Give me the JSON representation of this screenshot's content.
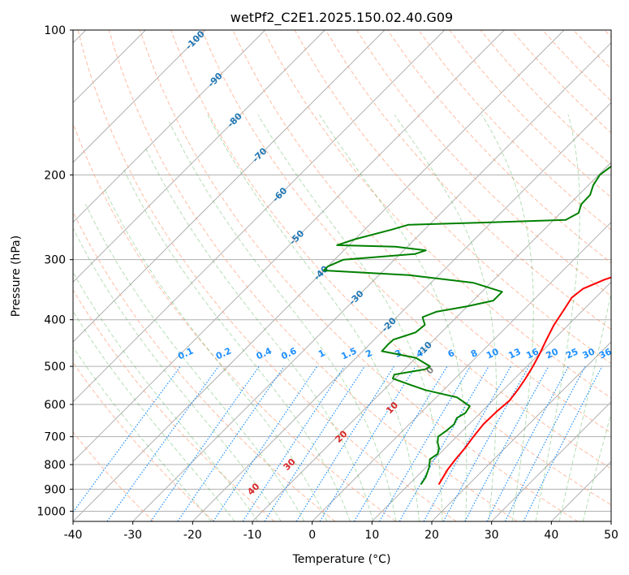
{
  "chart_data": {
    "type": "line",
    "title": "wetPf2_C2E1.2025.150.02.40.G09",
    "xlabel": "Temperature (°C)",
    "ylabel": "Pressure (hPa)",
    "xlim": [
      -40,
      50
    ],
    "ylim": [
      1050,
      100
    ],
    "y_scale": "log",
    "x_ticks": [
      -40,
      -30,
      -20,
      -10,
      0,
      10,
      20,
      30,
      40,
      50
    ],
    "y_ticks": [
      100,
      200,
      300,
      400,
      500,
      600,
      700,
      800,
      900,
      1000
    ],
    "grid": true,
    "skew": 45,
    "series": [
      {
        "role": "temperature",
        "color": "#ff0000",
        "points": [
          [
            15.0,
            880
          ],
          [
            14.0,
            820
          ],
          [
            13.6,
            780
          ],
          [
            13.3,
            740
          ],
          [
            12.8,
            700
          ],
          [
            12.4,
            660
          ],
          [
            12.5,
            620
          ],
          [
            12.8,
            590
          ],
          [
            12.4,
            560
          ],
          [
            11.8,
            530
          ],
          [
            11.0,
            500
          ],
          [
            10.0,
            470
          ],
          [
            8.8,
            440
          ],
          [
            7.6,
            410
          ],
          [
            6.7,
            380
          ],
          [
            6.0,
            360
          ],
          [
            6.4,
            345
          ],
          [
            8.5,
            330
          ],
          [
            11.0,
            318
          ],
          [
            12.8,
            305
          ],
          [
            13.6,
            290
          ],
          [
            15.0,
            278
          ],
          [
            16.1,
            268
          ],
          [
            15.5,
            258
          ],
          [
            13.8,
            248
          ],
          [
            12.0,
            238
          ],
          [
            11.0,
            227
          ],
          [
            10.6,
            215
          ],
          [
            10.5,
            200
          ],
          [
            9.9,
            190
          ],
          [
            8.3,
            180
          ],
          [
            6.3,
            168
          ],
          [
            5.3,
            155
          ],
          [
            5.5,
            145
          ],
          [
            6.6,
            135
          ],
          [
            7.5,
            125
          ],
          [
            8.6,
            118
          ],
          [
            10.2,
            110
          ],
          [
            12.5,
            100
          ]
        ]
      },
      {
        "role": "dewpoint",
        "color": "#008000",
        "points": [
          [
            12.0,
            880
          ],
          [
            11.6,
            850
          ],
          [
            10.5,
            810
          ],
          [
            9.3,
            780
          ],
          [
            9.7,
            760
          ],
          [
            9.0,
            740
          ],
          [
            7.8,
            720
          ],
          [
            6.9,
            700
          ],
          [
            7.3,
            680
          ],
          [
            7.5,
            660
          ],
          [
            6.9,
            640
          ],
          [
            7.5,
            625
          ],
          [
            7.1,
            605
          ],
          [
            3.5,
            580
          ],
          [
            -3.0,
            560
          ],
          [
            -6.7,
            545
          ],
          [
            -10.4,
            530
          ],
          [
            -10.8,
            520
          ],
          [
            -6.5,
            507
          ],
          [
            -6.2,
            500
          ],
          [
            -10.0,
            480
          ],
          [
            -16.8,
            465
          ],
          [
            -16.9,
            450
          ],
          [
            -16.8,
            440
          ],
          [
            -14.3,
            425
          ],
          [
            -14.0,
            410
          ],
          [
            -15.7,
            395
          ],
          [
            -14.3,
            385
          ],
          [
            -10.0,
            375
          ],
          [
            -6.6,
            365
          ],
          [
            -6.6,
            350
          ],
          [
            -13.0,
            335
          ],
          [
            -25.0,
            323
          ],
          [
            -40.0,
            316
          ],
          [
            -40.0,
            310
          ],
          [
            -38.5,
            300
          ],
          [
            -27.5,
            292
          ],
          [
            -26.3,
            287
          ],
          [
            -32.0,
            282
          ],
          [
            -42.0,
            280
          ],
          [
            -40.0,
            272
          ],
          [
            -35.5,
            260
          ],
          [
            -33.5,
            254
          ],
          [
            -20.0,
            251
          ],
          [
            -8.0,
            248
          ],
          [
            -7.0,
            240
          ],
          [
            -8.0,
            230
          ],
          [
            -8.1,
            220
          ],
          [
            -9.2,
            210
          ],
          [
            -9.8,
            200
          ],
          [
            -9.2,
            190
          ],
          [
            -9.2,
            180
          ],
          [
            -9.0,
            170
          ],
          [
            -9.3,
            160
          ],
          [
            -9.1,
            150
          ],
          [
            -9.6,
            140
          ],
          [
            -8.6,
            130
          ],
          [
            -6.9,
            120
          ],
          [
            -4.7,
            110
          ],
          [
            -1.8,
            100
          ]
        ]
      }
    ],
    "annotations": {
      "isotherm_labels": [
        "-100",
        "-90",
        "-80",
        "-70",
        "-60",
        "-50",
        "-40",
        "-30",
        "-20",
        "-10"
      ],
      "mixing_ratio_labels": [
        "0.1",
        "0.2",
        "0.4",
        "0.6",
        "1",
        "1.5",
        "2",
        "3",
        "4",
        "6",
        "8",
        "10",
        "13",
        "16",
        "20",
        "25",
        "30",
        "36"
      ],
      "moist_adiabat_labels": [
        "0",
        "10",
        "20",
        "30",
        "40"
      ]
    }
  },
  "colors": {
    "temperature": "#ff0000",
    "dewpoint": "#008000",
    "isotherm_label": "#1f77b4",
    "mixing_ratio_label": "#1e90ff",
    "moist_label": "#d62728",
    "zero_label": "#808080"
  }
}
